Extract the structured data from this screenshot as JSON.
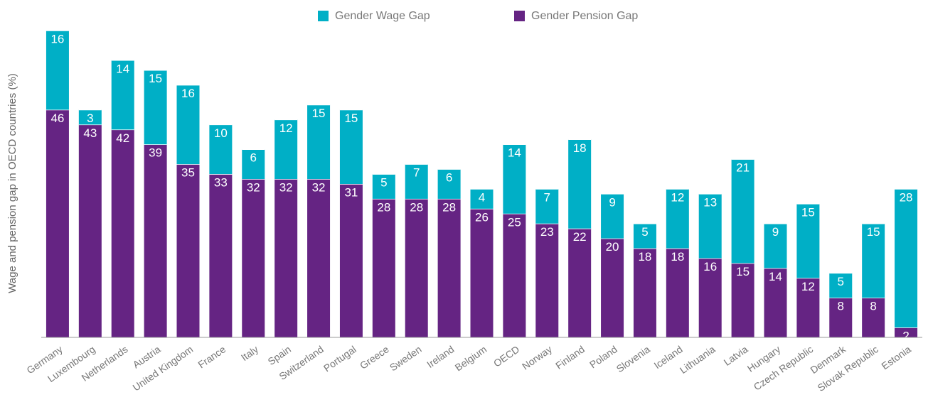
{
  "chart_data": {
    "type": "stacked_bar",
    "y_label": "Wage and pension gap in OECD countries (%)",
    "categories": [
      "Germany",
      "Luxembourg",
      "Netherlands",
      "Austria",
      "United Kingdom",
      "France",
      "Italy",
      "Spain",
      "Switzerland",
      "Portugal",
      "Greece",
      "Sweden",
      "Ireland",
      "Belgium",
      "OECD",
      "Norway",
      "Finland",
      "Poland",
      "Slovenia",
      "Iceland",
      "Lithuania",
      "Latvia",
      "Hungary",
      "Czech Republic",
      "Denmark",
      "Slovak Republic",
      "Estonia"
    ],
    "series": [
      {
        "name": "Gender Wage Gap",
        "color": "#00afc6",
        "values": [
          16,
          3,
          14,
          15,
          16,
          10,
          6,
          12,
          15,
          15,
          5,
          7,
          6,
          4,
          14,
          7,
          18,
          9,
          5,
          12,
          13,
          21,
          9,
          15,
          5,
          15,
          28
        ]
      },
      {
        "name": "Gender Pension Gap",
        "color": "#652483",
        "values": [
          46,
          43,
          42,
          39,
          35,
          33,
          32,
          32,
          32,
          31,
          28,
          28,
          28,
          26,
          25,
          23,
          22,
          20,
          18,
          18,
          16,
          15,
          14,
          12,
          8,
          8,
          2
        ]
      }
    ],
    "ylim": [
      0,
      62
    ]
  }
}
